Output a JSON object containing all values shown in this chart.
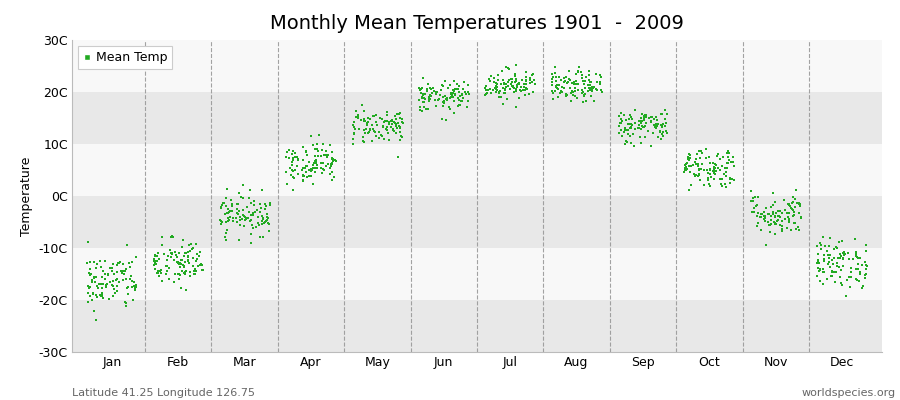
{
  "title": "Monthly Mean Temperatures 1901  -  2009",
  "ylabel": "Temperature",
  "ytick_labels": [
    "-30C",
    "-20C",
    "-10C",
    "0C",
    "10C",
    "20C",
    "30C"
  ],
  "ytick_values": [
    -30,
    -20,
    -10,
    0,
    10,
    20,
    30
  ],
  "ylim": [
    -30,
    30
  ],
  "months": [
    "Jan",
    "Feb",
    "Mar",
    "Apr",
    "May",
    "Jun",
    "Jul",
    "Aug",
    "Sep",
    "Oct",
    "Nov",
    "Dec"
  ],
  "month_centers": [
    1,
    2,
    3,
    4,
    5,
    6,
    7,
    8,
    9,
    10,
    11,
    12
  ],
  "mean_temps": [
    -16.5,
    -13.0,
    -3.5,
    6.5,
    13.5,
    19.0,
    21.5,
    21.0,
    13.5,
    5.5,
    -3.5,
    -13.0
  ],
  "std_temps": [
    2.8,
    2.4,
    2.0,
    2.0,
    1.7,
    1.5,
    1.5,
    1.5,
    1.7,
    2.0,
    2.1,
    2.4
  ],
  "n_years": 109,
  "marker_color": "#22aa22",
  "marker_size": 2.5,
  "background_color": "#ffffff",
  "plot_bg_color": "#f0f0f0",
  "band_light": "#f8f8f8",
  "band_dark": "#e8e8e8",
  "legend_label": "Mean Temp",
  "footer_left": "Latitude 41.25 Longitude 126.75",
  "footer_right": "worldspecies.org",
  "title_fontsize": 14,
  "label_fontsize": 9,
  "tick_fontsize": 9,
  "footer_fontsize": 8
}
